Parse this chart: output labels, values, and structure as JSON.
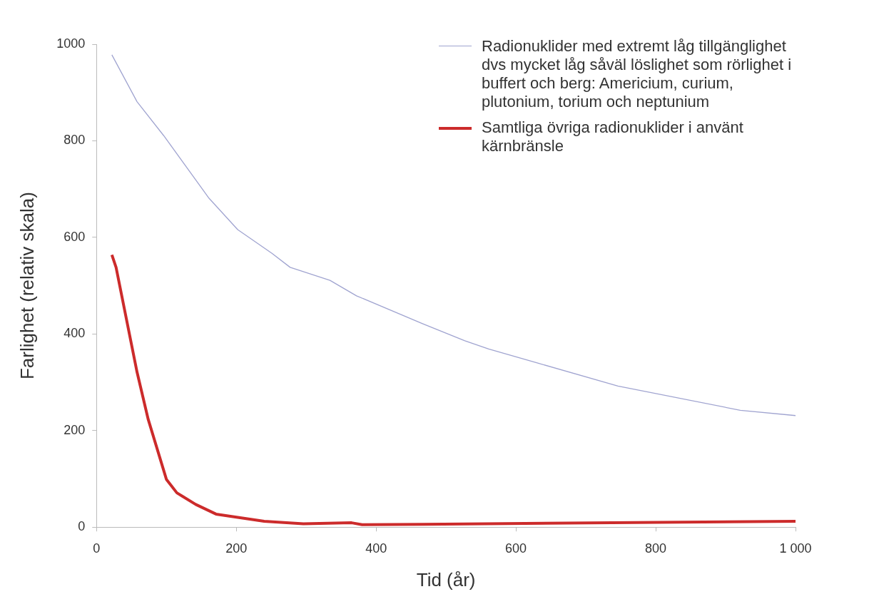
{
  "chart_data": {
    "type": "line",
    "xlabel": "Tid (år)",
    "ylabel": "Farlighet (relativ skala)",
    "xlim": [
      0,
      1000
    ],
    "xticks": [
      0,
      200,
      400,
      600,
      800,
      {
        "value": 1000,
        "label": "1 000"
      }
    ],
    "ylim": [
      0,
      1000
    ],
    "yticks": [
      0,
      200,
      400,
      600,
      800,
      1000
    ],
    "grid": false,
    "legend": "top right",
    "marker": "none",
    "line_style": "solid",
    "series": [
      {
        "name": "Radionuklider med extremt låg tillgänglighet dvs mycket låg såväl löslighet som rörlighet i buffert och berg: Americium, curium, plutonium, torium och neptunium",
        "color": "#a0a4d0",
        "x": [
          22,
          58,
          96,
          161,
          202,
          251,
          277,
          334,
          372,
          467,
          527,
          561,
          746,
          921,
          1000
        ],
        "values": [
          978,
          881,
          811,
          681,
          616,
          567,
          538,
          511,
          479,
          421,
          386,
          369,
          292,
          242,
          231
        ]
      },
      {
        "name": "Samtliga övriga radionuklider i använt kärnbränsle",
        "color": "#cc2b2b",
        "x": [
          22,
          28,
          58,
          74,
          100,
          115,
          142,
          171,
          240,
          296,
          365,
          380,
          467,
          1000
        ],
        "values": [
          564,
          538,
          321,
          223,
          99,
          71,
          47,
          27,
          12,
          7,
          9,
          5,
          6,
          12
        ]
      }
    ]
  }
}
